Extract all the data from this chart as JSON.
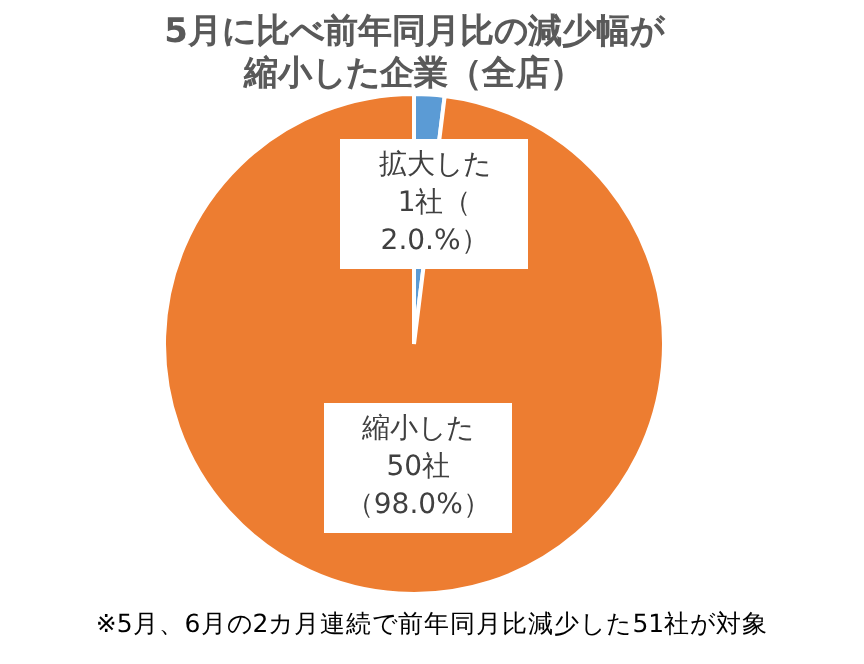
{
  "chart_data": {
    "type": "pie",
    "title": "5月に比べ前年同月比の減少幅が縮小した企業（全店）",
    "categories": [
      "拡大した",
      "縮小した"
    ],
    "values": [
      1,
      50
    ],
    "colors": [
      "#5b9bd5",
      "#ed7d31"
    ],
    "value_labels": [
      "1社（ 2.0.%）",
      "50社（98.0%）"
    ],
    "annotations": [
      "※5月、6月の2カ月連続で前年同月比減少した51社が対象"
    ],
    "legend": false
  }
}
